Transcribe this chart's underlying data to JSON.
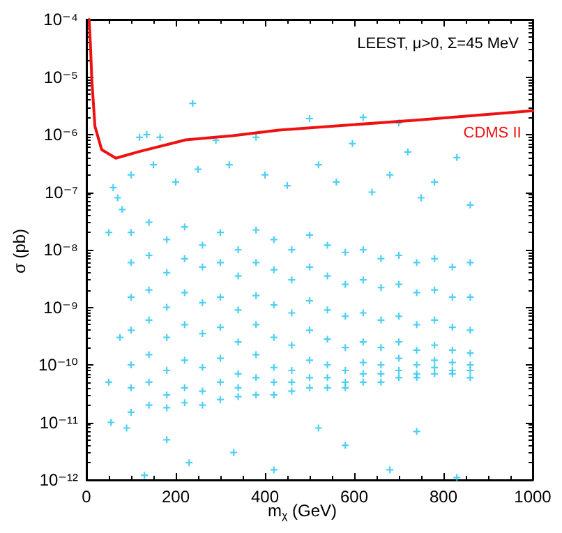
{
  "chart_data": {
    "type": "scatter",
    "xlabel": "m$_{χ}$ (GeV)",
    "ylabel": "σ (pb)",
    "annotations": [
      "LEEST, μ>0, Σ=45 MeV"
    ],
    "log": "y",
    "grid": false,
    "legend": false,
    "marker": "cross",
    "xlim": [
      0,
      1000
    ],
    "xticks": [
      0,
      200,
      400,
      600,
      800,
      1000
    ],
    "ylim": [
      1e-12,
      0.0001
    ],
    "yticks": [
      {
        "value": 1e-12,
        "label": "10⁻¹²"
      },
      {
        "value": 1e-11,
        "label": "10⁻¹¹"
      },
      {
        "value": 1e-10,
        "label": "10⁻¹⁰"
      },
      {
        "value": 1e-09,
        "label": "10⁻⁹"
      },
      {
        "value": 1e-08,
        "label": "10⁻⁸"
      },
      {
        "value": 1e-07,
        "label": "10⁻⁷"
      },
      {
        "value": 1e-06,
        "label": "10⁻⁶"
      },
      {
        "value": 1e-05,
        "label": "10⁻⁵"
      },
      {
        "value": 0.0001,
        "label": "10⁻⁴"
      }
    ],
    "series": [
      {
        "color": "#22c4f0",
        "x": [
          238,
          119,
          135,
          165,
          290,
          380,
          620,
          700,
          500,
          596,
          720,
          830,
          60,
          80,
          100,
          150,
          200,
          250,
          320,
          400,
          450,
          520,
          560,
          640,
          680,
          750,
          780,
          860,
          50,
          70,
          100,
          100,
          100,
          100,
          100,
          100,
          100,
          140,
          140,
          140,
          140,
          140,
          140,
          140,
          180,
          180,
          180,
          180,
          180,
          180,
          180,
          220,
          220,
          220,
          220,
          220,
          220,
          220,
          260,
          260,
          260,
          260,
          260,
          260,
          260,
          300,
          300,
          300,
          300,
          300,
          300,
          300,
          340,
          340,
          340,
          340,
          340,
          340,
          340,
          380,
          380,
          380,
          380,
          380,
          380,
          380,
          420,
          420,
          420,
          420,
          420,
          420,
          420,
          460,
          460,
          460,
          460,
          460,
          460,
          460,
          500,
          500,
          500,
          500,
          500,
          500,
          500,
          540,
          540,
          540,
          540,
          540,
          540,
          540,
          580,
          580,
          580,
          580,
          580,
          580,
          580,
          620,
          620,
          620,
          620,
          620,
          620,
          620,
          660,
          660,
          660,
          660,
          660,
          660,
          660,
          700,
          700,
          700,
          700,
          700,
          700,
          700,
          740,
          740,
          740,
          740,
          740,
          740,
          740,
          780,
          780,
          780,
          780,
          780,
          780,
          780,
          820,
          820,
          820,
          820,
          820,
          820,
          820,
          860,
          860,
          860,
          860,
          860,
          860,
          860,
          130,
          180,
          230,
          330,
          420,
          520,
          580,
          680,
          740,
          830,
          50,
          55,
          75,
          90
        ],
        "values": [
          3.5e-06,
          9e-07,
          1e-06,
          9e-07,
          8e-07,
          9e-07,
          2e-06,
          1.6e-06,
          1.9e-06,
          7e-07,
          5e-07,
          4e-07,
          1.2e-07,
          5e-08,
          2e-07,
          3e-07,
          1.5e-07,
          2.5e-07,
          3e-07,
          2e-07,
          1.3e-07,
          3e-07,
          1.5e-07,
          1e-07,
          2e-07,
          8e-08,
          1.5e-07,
          6e-08,
          2e-08,
          8e-08,
          2e-08,
          6e-09,
          1.5e-09,
          4e-10,
          1e-10,
          4e-11,
          1.5e-11,
          3e-08,
          8e-09,
          2e-09,
          6e-10,
          1.5e-10,
          5e-11,
          2e-11,
          1.5e-08,
          4e-09,
          1e-09,
          3e-10,
          8e-11,
          3e-11,
          1.8e-11,
          2.5e-08,
          7e-09,
          1.8e-09,
          5e-10,
          1.2e-10,
          4e-11,
          2.2e-11,
          1.2e-08,
          5e-09,
          1.2e-09,
          3.5e-10,
          9e-11,
          3.5e-11,
          2e-11,
          2e-08,
          6e-09,
          1.5e-09,
          4.5e-10,
          1.3e-10,
          5e-11,
          2.5e-11,
          1e-08,
          3.5e-09,
          9e-10,
          2.5e-10,
          7e-11,
          4e-11,
          2.8e-11,
          2.2e-08,
          6e-09,
          1.6e-09,
          5e-10,
          1.5e-10,
          6e-11,
          3e-11,
          1.5e-08,
          4.5e-09,
          1.1e-09,
          3e-10,
          9e-11,
          5e-11,
          3e-11,
          1e-08,
          3e-09,
          8e-10,
          2.2e-10,
          8e-11,
          5e-11,
          3.5e-11,
          1.8e-08,
          5e-09,
          1.3e-09,
          4e-10,
          1.2e-10,
          6e-11,
          4e-11,
          1.2e-08,
          3.5e-09,
          9e-10,
          2.8e-10,
          1e-10,
          6e-11,
          4e-11,
          9e-09,
          2.5e-09,
          7e-10,
          2e-10,
          8e-11,
          5e-11,
          4e-11,
          1e-08,
          3e-09,
          8e-10,
          2.5e-10,
          1.1e-10,
          7e-11,
          5e-11,
          7e-09,
          2.2e-09,
          6e-10,
          2e-10,
          1e-10,
          7e-11,
          5e-11,
          8e-09,
          2.5e-09,
          7e-10,
          2.5e-10,
          1.3e-10,
          8e-11,
          6e-11,
          6e-09,
          1.8e-09,
          5e-10,
          1.8e-10,
          1e-10,
          7e-11,
          6e-11,
          7e-09,
          2e-09,
          6e-10,
          2.2e-10,
          1.2e-10,
          9e-11,
          7e-11,
          5e-09,
          1.5e-09,
          4.5e-10,
          1.8e-10,
          1.1e-10,
          8e-11,
          7e-11,
          6e-09,
          1.5e-09,
          4e-10,
          1.6e-10,
          1e-10,
          8e-11,
          6e-11,
          1.2e-12,
          5e-12,
          2e-12,
          3e-12,
          1.5e-12,
          8e-12,
          4e-12,
          1.5e-12,
          7e-12,
          1.1e-12,
          5e-11,
          1e-11,
          3e-10,
          8e-12
        ]
      },
      {
        "type": "line",
        "name": "CDMS II",
        "color": "#ee1111",
        "marker": "none",
        "x": [
          6,
          9,
          12,
          19,
          34,
          66,
          119,
          222,
          328,
          431,
          744,
          1000
        ],
        "values": [
          0.0001,
          3.5e-05,
          9e-06,
          1.4e-06,
          5.5e-07,
          3.9e-07,
          5.1e-07,
          8.1e-07,
          9.6e-07,
          1.2e-06,
          1.8e-06,
          2.6e-06
        ]
      }
    ]
  }
}
